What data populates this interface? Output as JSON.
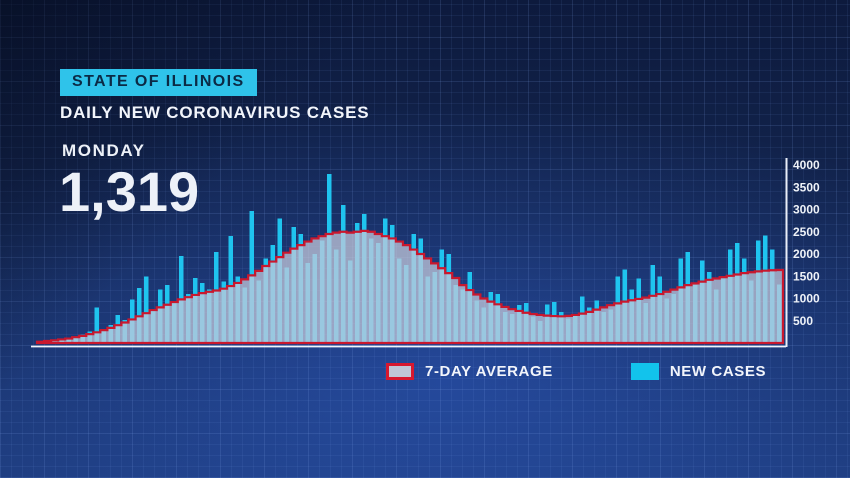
{
  "header": {
    "badge": "STATE OF ILLINOIS",
    "title": "DAILY NEW CORONAVIRUS CASES"
  },
  "stat": {
    "day": "MONDAY",
    "value": "1,319"
  },
  "legend": [
    {
      "label": "7-DAY AVERAGE",
      "swatch_fill": "#c0c6d7",
      "swatch_border": "#d7182f"
    },
    {
      "label": "NEW CASES",
      "swatch_fill": "#12c3ec"
    }
  ],
  "colors": {
    "badge_bg": "#2fc3ea",
    "badge_text": "#0b2a45",
    "bar": "#1fc4ef",
    "avg_fill": "#c3c9da",
    "avg_fill_opacity": 0.74,
    "avg_stroke": "#c9182e",
    "axis_line": "#e9eef8",
    "tick_text": "#eef2f8",
    "baseline": "#f0f4fc"
  },
  "chart_data": {
    "type": "bar",
    "title": "DAILY NEW CORONAVIRUS CASES",
    "region": "STATE OF ILLINOIS",
    "ylim": [
      0,
      4000
    ],
    "y_ticks": [
      500,
      1000,
      1500,
      2000,
      2500,
      3000,
      3500,
      4000
    ],
    "y_axis_side": "right",
    "legend_position": "bottom",
    "grid": "blueprint background grid",
    "latest_day_label": "MONDAY",
    "latest_value": 1319,
    "series": [
      {
        "name": "NEW CASES",
        "type": "bar",
        "color": "#12c3ec",
        "values": [
          25,
          60,
          75,
          90,
          85,
          110,
          190,
          260,
          800,
          320,
          410,
          630,
          520,
          980,
          1240,
          1500,
          730,
          1200,
          1300,
          900,
          1950,
          1100,
          1460,
          1350,
          1200,
          2050,
          1380,
          2400,
          1500,
          1250,
          2970,
          1400,
          1900,
          2200,
          2800,
          1700,
          2610,
          2450,
          1800,
          2000,
          2300,
          3800,
          2100,
          3100,
          1850,
          2700,
          2900,
          2350,
          2250,
          2800,
          2650,
          1900,
          1750,
          2450,
          2350,
          1500,
          1600,
          2100,
          2000,
          1300,
          1200,
          1600,
          950,
          800,
          1150,
          1100,
          700,
          650,
          850,
          900,
          600,
          500,
          870,
          920,
          700,
          550,
          640,
          1050,
          800,
          950,
          700,
          750,
          1500,
          1650,
          1200,
          1450,
          900,
          1750,
          1500,
          1000,
          1100,
          1900,
          2050,
          1300,
          1850,
          1600,
          1200,
          1450,
          2100,
          2250,
          1900,
          1400,
          2300,
          2420,
          2100,
          1319
        ]
      },
      {
        "name": "7-DAY AVERAGE",
        "type": "area",
        "fill": "#c3c9da",
        "stroke": "#d7182f",
        "values": [
          30,
          45,
          60,
          80,
          100,
          130,
          160,
          200,
          240,
          290,
          340,
          400,
          460,
          530,
          600,
          670,
          740,
          800,
          860,
          920,
          980,
          1030,
          1080,
          1120,
          1150,
          1180,
          1220,
          1280,
          1350,
          1430,
          1520,
          1620,
          1730,
          1830,
          1930,
          2030,
          2120,
          2200,
          2280,
          2350,
          2400,
          2450,
          2480,
          2500,
          2480,
          2500,
          2520,
          2500,
          2450,
          2400,
          2350,
          2280,
          2200,
          2100,
          2000,
          1900,
          1790,
          1680,
          1570,
          1460,
          1300,
          1190,
          1090,
          1000,
          930,
          870,
          810,
          760,
          720,
          680,
          650,
          630,
          615,
          605,
          600,
          610,
          630,
          660,
          700,
          750,
          800,
          850,
          890,
          930,
          960,
          990,
          1020,
          1060,
          1100,
          1150,
          1200,
          1250,
          1300,
          1340,
          1380,
          1420,
          1450,
          1480,
          1510,
          1540,
          1570,
          1590,
          1610,
          1625,
          1635,
          1640
        ]
      }
    ]
  }
}
